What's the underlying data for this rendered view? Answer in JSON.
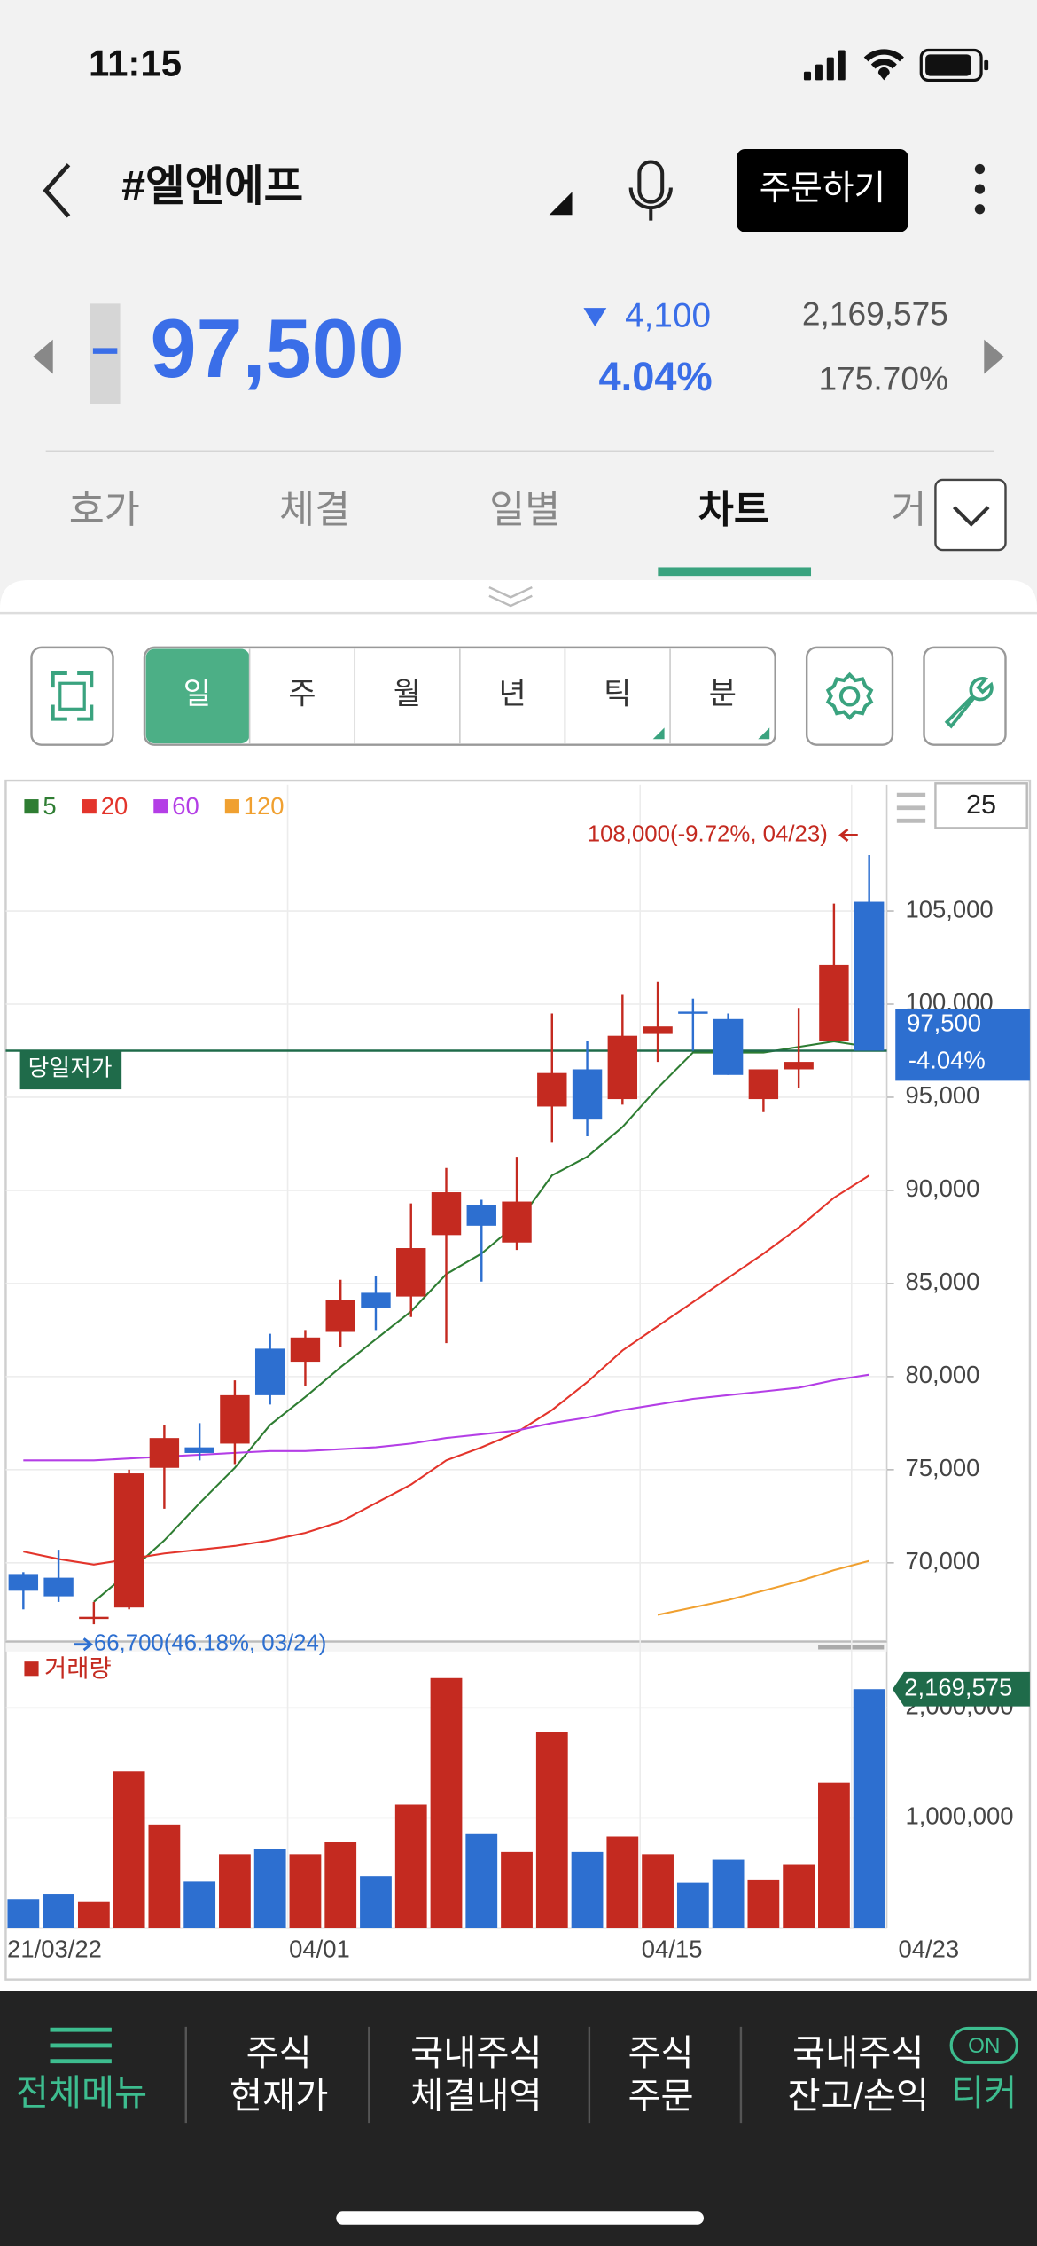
{
  "status": {
    "time": "11:15"
  },
  "header": {
    "title": "#엘앤에프",
    "order_button": "주문하기"
  },
  "quote": {
    "price": "97,500",
    "change": "4,100",
    "change_rate": "4.04%",
    "volume": "2,169,575",
    "volume_ratio": "175.70%"
  },
  "tabs": [
    "호가",
    "체결",
    "일별",
    "차트",
    "거"
  ],
  "periods": [
    "일",
    "주",
    "월",
    "년",
    "틱",
    "분"
  ],
  "nav": [
    [
      "전체메뉴"
    ],
    [
      "주식",
      "현재가"
    ],
    [
      "국내주식",
      "체결내역"
    ],
    [
      "주식",
      "주문"
    ],
    [
      "국내주식",
      "잔고/손익"
    ]
  ],
  "ticker": {
    "badge": "ON",
    "label": "티커"
  },
  "chart_data": {
    "type": "candlestick",
    "categories": [
      "21/03/22",
      null,
      null,
      null,
      null,
      null,
      null,
      null,
      "04/01",
      null,
      null,
      null,
      null,
      null,
      null,
      null,
      null,
      null,
      "04/15",
      null,
      null,
      null,
      null,
      null,
      "04/23"
    ],
    "open": [
      69400,
      69200,
      67000,
      67600,
      75100,
      76200,
      76400,
      81500,
      80800,
      82400,
      84500,
      84300,
      87600,
      89200,
      87200,
      94500,
      96500,
      94900,
      98400,
      99600,
      99200,
      94900,
      96500,
      98000,
      105500
    ],
    "high": [
      69500,
      70700,
      67900,
      75000,
      77400,
      77500,
      79800,
      82300,
      82500,
      85200,
      85400,
      89300,
      91200,
      89500,
      91800,
      99500,
      98000,
      100500,
      101200,
      100300,
      99500,
      96500,
      99800,
      105400,
      108000
    ],
    "low": [
      67500,
      67900,
      66700,
      67500,
      72900,
      75500,
      75300,
      78500,
      79500,
      81600,
      82500,
      83200,
      81800,
      85100,
      86800,
      92600,
      92900,
      94600,
      96900,
      97500,
      96200,
      94200,
      95500,
      98000,
      97500
    ],
    "close": [
      68500,
      68200,
      67100,
      74800,
      76700,
      75900,
      79000,
      79000,
      82100,
      84100,
      83700,
      86900,
      89900,
      88100,
      89400,
      96300,
      93800,
      98300,
      98800,
      99500,
      96200,
      96500,
      96900,
      102100,
      97500
    ],
    "up_color": "#c42a20",
    "down_color": "#2d6fd0",
    "ylim": [
      65850,
      111770
    ],
    "yticks": [
      {
        "value": 70000,
        "label": "70,000"
      },
      {
        "value": 75000,
        "label": "75,000"
      },
      {
        "value": 80000,
        "label": "80,000"
      },
      {
        "value": 85000,
        "label": "85,000"
      },
      {
        "value": 90000,
        "label": "90,000"
      },
      {
        "value": 95000,
        "label": "95,000"
      },
      {
        "value": 100000,
        "label": "100,000"
      },
      {
        "value": 105000,
        "label": "105,000"
      }
    ],
    "grid": true,
    "count": 25,
    "moving_averages": [
      {
        "name": "5",
        "color": "#2e7d32",
        "values": [
          null,
          null,
          67900,
          69500,
          71200,
          73200,
          75100,
          77400,
          78900,
          80500,
          82000,
          83500,
          85500,
          86600,
          88200,
          90800,
          91800,
          93400,
          95500,
          97400,
          97400,
          97400,
          97700,
          98000,
          97700
        ]
      },
      {
        "name": "20",
        "color": "#e3342b",
        "values": [
          70600,
          70200,
          69900,
          70200,
          70500,
          70700,
          70900,
          71200,
          71600,
          72200,
          73200,
          74200,
          75500,
          76200,
          77000,
          78200,
          79700,
          81400,
          82700,
          84000,
          85300,
          86600,
          88000,
          89600,
          90800
        ]
      },
      {
        "name": "60",
        "color": "#b43ee6",
        "values": [
          75500,
          75500,
          75500,
          75600,
          75700,
          75800,
          75900,
          76000,
          76000,
          76100,
          76200,
          76400,
          76700,
          76900,
          77100,
          77500,
          77800,
          78200,
          78500,
          78800,
          79000,
          79200,
          79400,
          79800,
          80100
        ]
      },
      {
        "name": "120",
        "color": "#f0a030",
        "values": [
          null,
          null,
          null,
          null,
          null,
          null,
          null,
          null,
          null,
          null,
          null,
          null,
          null,
          null,
          null,
          null,
          null,
          null,
          67200,
          67600,
          68000,
          68500,
          69000,
          69600,
          70100
        ]
      }
    ],
    "high_note": {
      "value": 108000,
      "label": "108,000(-9.72%, 04/23)"
    },
    "low_note": {
      "value": 66700,
      "label": "66,700(46.18%, 03/24)"
    },
    "reference_line": {
      "label": "당일저가",
      "color": "#1f6b4a"
    },
    "price_tag": {
      "value": 97500,
      "label": "97,500",
      "change": "-4.04%",
      "color": "#2d6fd0"
    },
    "volume": {
      "name": "거래량",
      "values": [
        260000,
        310000,
        240000,
        1420000,
        940000,
        420000,
        670000,
        720000,
        670000,
        780000,
        470000,
        1120000,
        2270000,
        860000,
        690000,
        1780000,
        690000,
        830000,
        670000,
        410000,
        620000,
        440000,
        580000,
        1320000,
        2169575
      ],
      "ylim": [
        0,
        2550000
      ],
      "yticks": [
        {
          "value": 1000000,
          "label": "1,000,000"
        },
        {
          "value": 2000000,
          "label": "2,000,000"
        }
      ],
      "last_tag": {
        "value": 2169575,
        "label": "2,169,575",
        "color": "#1f6b4a"
      }
    }
  }
}
